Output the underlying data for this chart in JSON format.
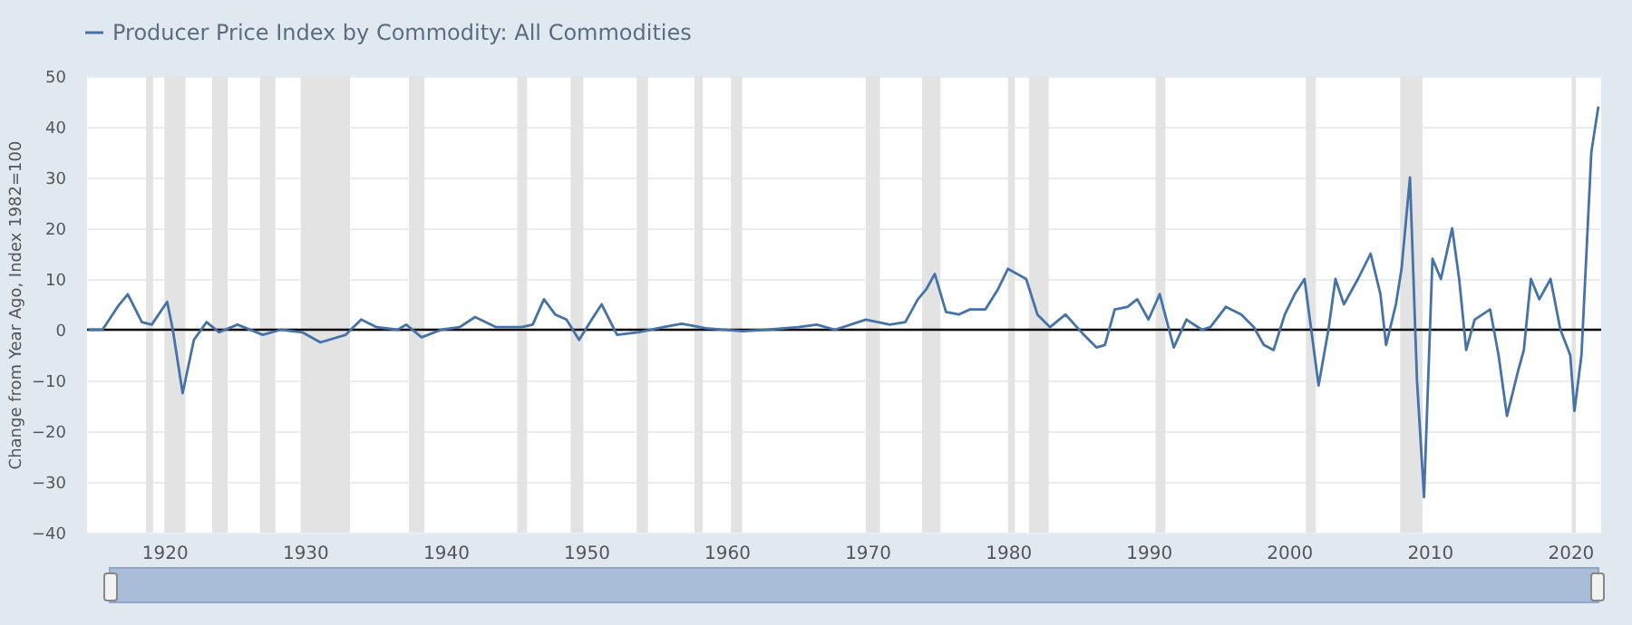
{
  "chart_data": {
    "type": "line",
    "ylabel": "Change from Year Ago, Index 1982=100",
    "x": [
      1914.6,
      1915.6,
      1916.7,
      1917.4,
      1918.4,
      1919.1,
      1920.2,
      1920.6,
      1921.3,
      1922.1,
      1923.0,
      1923.9,
      1925.2,
      1927.0,
      1928.3,
      1929.8,
      1931.1,
      1932.9,
      1934.0,
      1935.1,
      1936.6,
      1937.2,
      1938.3,
      1939.7,
      1941.0,
      1942.1,
      1943.6,
      1945.4,
      1946.2,
      1947.0,
      1947.8,
      1948.6,
      1949.5,
      1950.4,
      1951.1,
      1952.2,
      1953.7,
      1955.5,
      1956.8,
      1958.5,
      1961.1,
      1962.9,
      1965.1,
      1966.4,
      1967.7,
      1969.9,
      1971.6,
      1972.7,
      1973.6,
      1974.2,
      1974.8,
      1975.6,
      1976.5,
      1977.3,
      1978.4,
      1979.3,
      1980.0,
      1981.3,
      1982.1,
      1983.0,
      1984.1,
      1985.4,
      1986.3,
      1986.9,
      1987.6,
      1988.5,
      1989.2,
      1990.0,
      1990.8,
      1991.8,
      1992.7,
      1993.8,
      1994.4,
      1995.5,
      1996.6,
      1997.5,
      1998.2,
      1998.9,
      1999.7,
      2000.4,
      2001.1,
      2002.1,
      2002.8,
      2003.3,
      2003.9,
      2004.9,
      2005.8,
      2006.5,
      2006.9,
      2007.6,
      2008.0,
      2008.6,
      2009.1,
      2009.6,
      2010.2,
      2010.8,
      2011.6,
      2012.1,
      2012.6,
      2013.2,
      2014.3,
      2014.9,
      2015.5,
      2016.3,
      2016.7,
      2017.2,
      2017.8,
      2018.6,
      2019.3,
      2020.0,
      2020.3,
      2020.8,
      2021.5,
      2022.0
    ],
    "series": [
      {
        "name": "Producer Price Index by Commodity: All Commodities",
        "color": "#4572a7",
        "values": [
          0,
          0,
          4.6,
          7,
          1.5,
          1,
          5.5,
          0,
          -12.5,
          -2,
          1.5,
          -0.5,
          1,
          -1,
          0,
          -0.5,
          -2.5,
          -1,
          2,
          0.5,
          0,
          1,
          -1.5,
          0,
          0.5,
          2.5,
          0.5,
          0.5,
          1,
          6,
          3,
          2,
          -2,
          2,
          5,
          -1,
          -0.5,
          0.5,
          1.2,
          0.3,
          -0.3,
          0,
          0.5,
          1,
          0,
          2,
          1,
          1.5,
          6,
          8,
          11,
          3.5,
          3,
          4,
          4,
          8,
          12,
          10,
          3,
          0.5,
          3,
          -1,
          -3.5,
          -3,
          4,
          4.5,
          6,
          2,
          7,
          -3.5,
          2,
          0,
          0.5,
          4.5,
          3,
          0.5,
          -3,
          -4,
          3,
          7,
          10,
          -11,
          0,
          10,
          5,
          10,
          15,
          7,
          -3,
          5,
          12,
          30,
          -10,
          -33,
          14,
          10,
          20,
          10,
          -4,
          2,
          4,
          -5,
          -17,
          -8,
          -4,
          10,
          6,
          10,
          0,
          -5,
          -16,
          -5,
          35,
          44
        ]
      }
    ],
    "xlim": [
      1914.5,
      2022.2
    ],
    "xticks": [
      1920,
      1930,
      1940,
      1950,
      1960,
      1970,
      1980,
      1990,
      2000,
      2010,
      2020
    ],
    "ylim": [
      -40,
      50
    ],
    "yticks": [
      -40,
      -30,
      -20,
      -10,
      0,
      10,
      20,
      30,
      40,
      50
    ],
    "grid": "y",
    "legend": "top left",
    "ref_lines": [
      {
        "axis": "y",
        "value": 0,
        "color": "#000000"
      }
    ],
    "bands": [
      {
        "axis": "x",
        "from": 1918.7,
        "to": 1919.2,
        "color": "#e3e3e3"
      },
      {
        "axis": "x",
        "from": 1920.0,
        "to": 1921.5,
        "color": "#e3e3e3"
      },
      {
        "axis": "x",
        "from": 1923.4,
        "to": 1924.5,
        "color": "#e3e3e3"
      },
      {
        "axis": "x",
        "from": 1926.8,
        "to": 1927.9,
        "color": "#e3e3e3"
      },
      {
        "axis": "x",
        "from": 1929.7,
        "to": 1933.2,
        "color": "#e3e3e3"
      },
      {
        "axis": "x",
        "from": 1937.4,
        "to": 1938.5,
        "color": "#e3e3e3"
      },
      {
        "axis": "x",
        "from": 1945.1,
        "to": 1945.8,
        "color": "#e3e3e3"
      },
      {
        "axis": "x",
        "from": 1948.9,
        "to": 1949.8,
        "color": "#e3e3e3"
      },
      {
        "axis": "x",
        "from": 1953.6,
        "to": 1954.4,
        "color": "#e3e3e3"
      },
      {
        "axis": "x",
        "from": 1957.7,
        "to": 1958.3,
        "color": "#e3e3e3"
      },
      {
        "axis": "x",
        "from": 1960.3,
        "to": 1961.1,
        "color": "#e3e3e3"
      },
      {
        "axis": "x",
        "from": 1969.9,
        "to": 1970.9,
        "color": "#e3e3e3"
      },
      {
        "axis": "x",
        "from": 1973.9,
        "to": 1975.2,
        "color": "#e3e3e3"
      },
      {
        "axis": "x",
        "from": 1980.0,
        "to": 1980.5,
        "color": "#e3e3e3"
      },
      {
        "axis": "x",
        "from": 1981.5,
        "to": 1982.9,
        "color": "#e3e3e3"
      },
      {
        "axis": "x",
        "from": 1990.5,
        "to": 1991.2,
        "color": "#e3e3e3"
      },
      {
        "axis": "x",
        "from": 2001.2,
        "to": 2001.9,
        "color": "#e3e3e3"
      },
      {
        "axis": "x",
        "from": 2007.9,
        "to": 2009.5,
        "color": "#e3e3e3"
      },
      {
        "axis": "x",
        "from": 2020.1,
        "to": 2020.4,
        "color": "#e3e3e3"
      }
    ]
  }
}
